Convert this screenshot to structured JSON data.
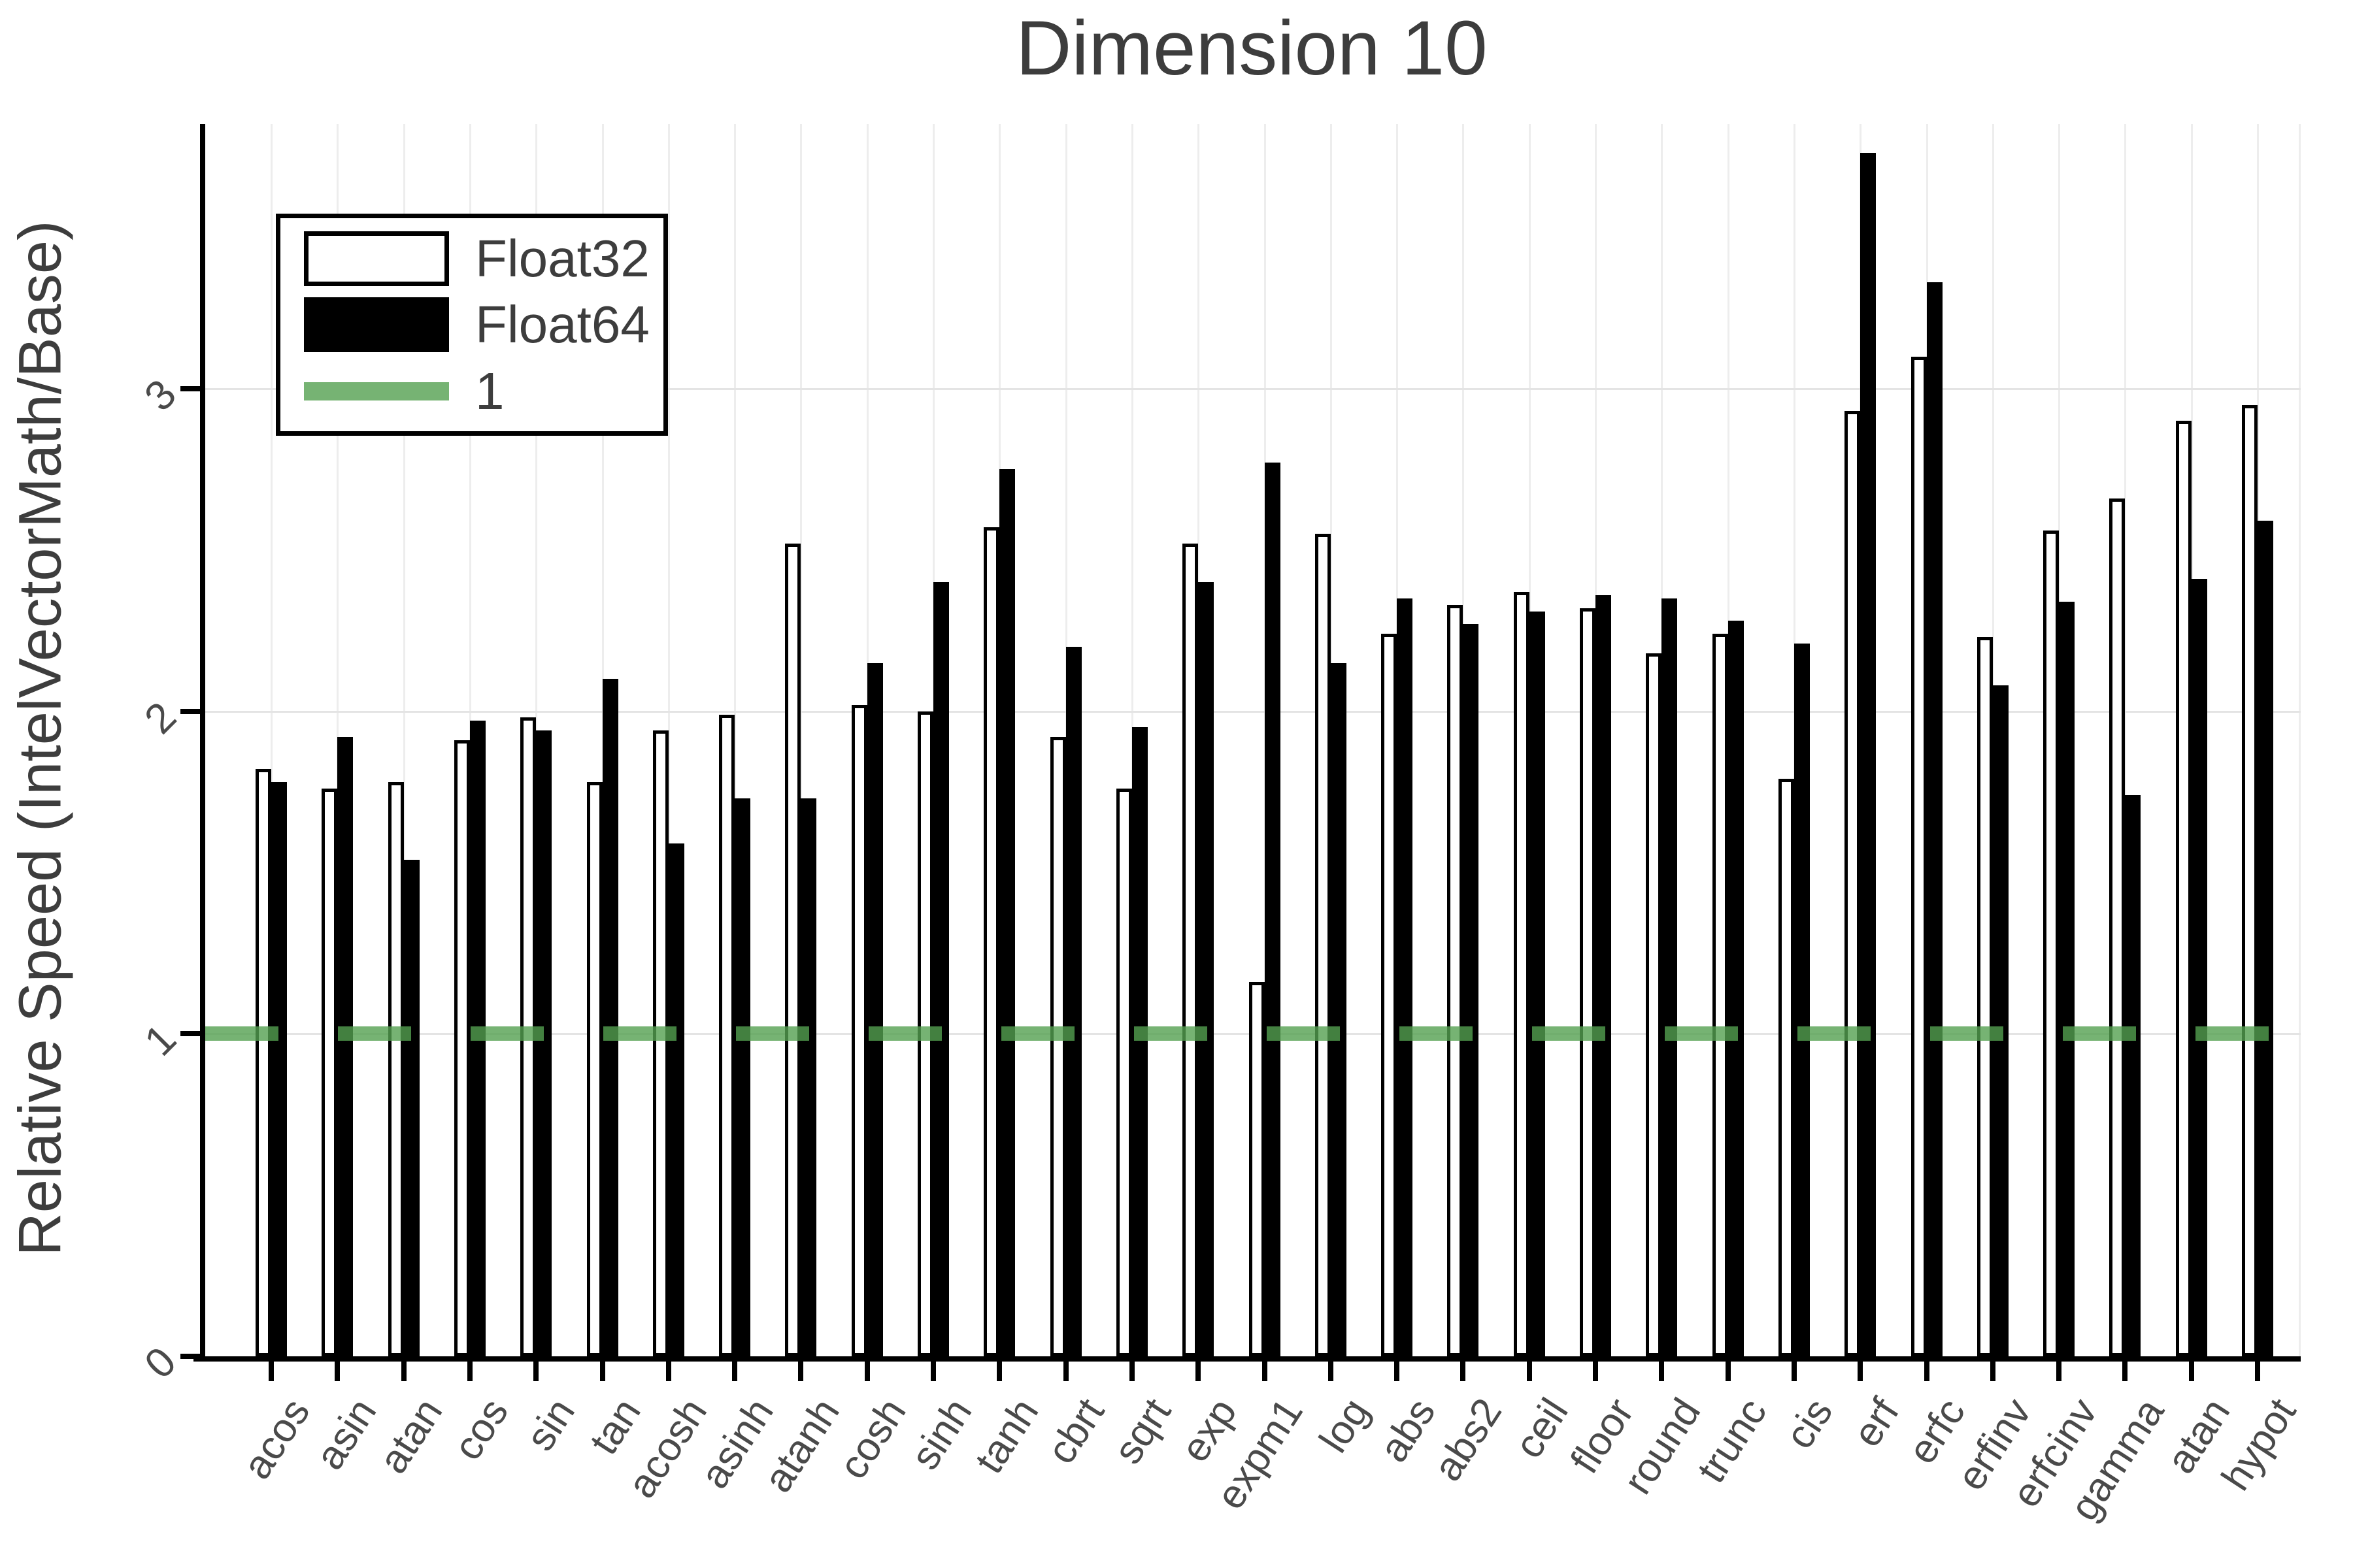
{
  "title": "Dimension 10",
  "ylabel": "Relative Speed (IntelVectorMath/Base)",
  "legend": {
    "float32_label": "Float32",
    "float64_label": "Float64",
    "refline_label": "1"
  },
  "y_tick_labels": [
    "0",
    "1",
    "2",
    "3"
  ],
  "colors": {
    "float32_fill": "#ffffff",
    "float64_fill": "#000000",
    "bar_border": "#000000",
    "refline_green": "rgba(84,160,80,0.8)",
    "grid_horizontal": "#e4e4e4",
    "grid_vertical": "#ededed",
    "axis": "#000000",
    "title_text": "#3d3d3d",
    "tick_text": "#4a4a4a"
  },
  "chart_data": {
    "type": "bar",
    "title": "Dimension 10",
    "xlabel": "",
    "ylabel": "Relative Speed (IntelVectorMath/Base)",
    "ylim": [
      0,
      3.82
    ],
    "y_ticks": [
      0,
      1,
      2,
      3
    ],
    "grid": true,
    "legend_position": "top-left",
    "refline": {
      "label": "1",
      "value": 1
    },
    "categories": [
      "acos",
      "asin",
      "atan",
      "cos",
      "sin",
      "tan",
      "acosh",
      "asinh",
      "atanh",
      "cosh",
      "sinh",
      "tanh",
      "cbrt",
      "sqrt",
      "exp",
      "expm1",
      "log",
      "abs",
      "abs2",
      "ceil",
      "floor",
      "round",
      "trunc",
      "cis",
      "erf",
      "erfc",
      "erfinv",
      "erfcinv",
      "gamma",
      "atan",
      "hypot"
    ],
    "series": [
      {
        "name": "Float32",
        "values": [
          1.82,
          1.76,
          1.78,
          1.91,
          1.98,
          1.78,
          1.94,
          1.99,
          2.52,
          2.02,
          2.0,
          2.57,
          1.92,
          1.76,
          2.52,
          1.16,
          2.55,
          2.24,
          2.33,
          2.37,
          2.32,
          2.18,
          2.24,
          1.79,
          2.93,
          3.1,
          2.23,
          2.56,
          2.66,
          2.9,
          2.95
        ]
      },
      {
        "name": "Float64",
        "values": [
          1.78,
          1.92,
          1.54,
          1.97,
          1.94,
          2.1,
          1.59,
          1.73,
          1.73,
          2.15,
          2.4,
          2.75,
          2.2,
          1.95,
          2.4,
          2.77,
          2.15,
          2.35,
          2.27,
          2.31,
          2.36,
          2.35,
          2.28,
          2.21,
          3.73,
          3.33,
          2.08,
          2.34,
          1.74,
          2.41,
          2.59
        ]
      }
    ]
  }
}
